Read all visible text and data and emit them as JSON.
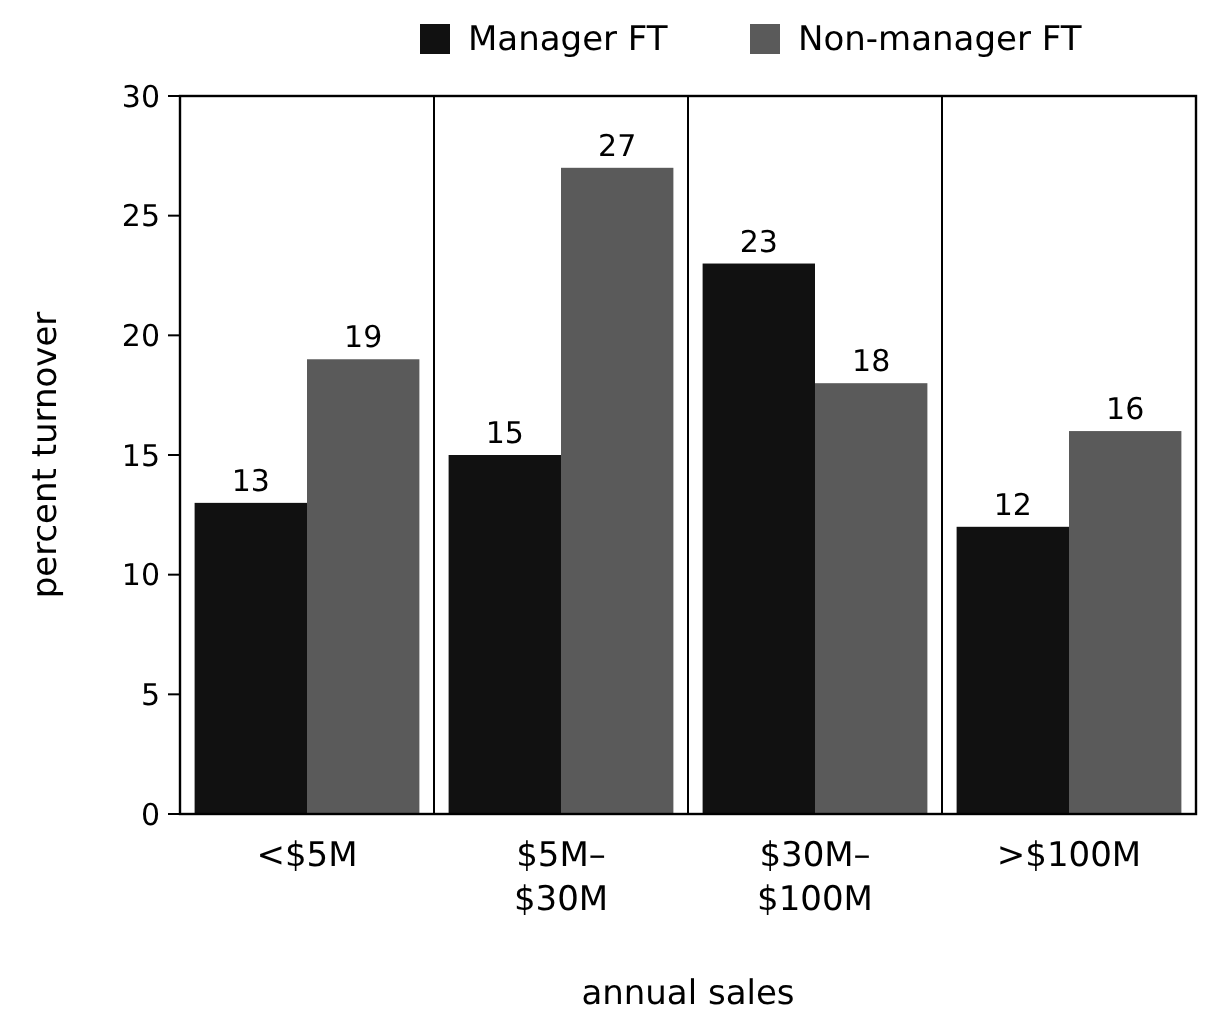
{
  "chart_data": {
    "type": "bar",
    "xlabel": "annual sales",
    "ylabel": "percent turnover",
    "categories": [
      "<$5M",
      "$5M–\n$30M",
      "$30M–\n$100M",
      ">$100M"
    ],
    "series": [
      {
        "name": "Manager FT",
        "color": "#111111",
        "values": [
          13,
          15,
          23,
          12
        ]
      },
      {
        "name": "Non-manager FT",
        "color": "#5a5a5a",
        "values": [
          19,
          27,
          18,
          16
        ]
      }
    ],
    "ylim": [
      0,
      30
    ],
    "yticks": [
      0,
      5,
      10,
      15,
      20,
      25,
      30
    ],
    "grid": "x",
    "legend": "top",
    "data_labels": true
  }
}
